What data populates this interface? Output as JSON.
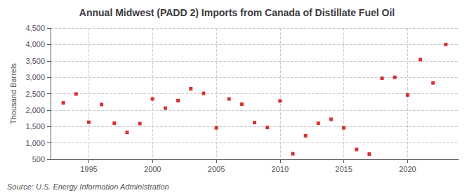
{
  "chart_data": {
    "type": "scatter",
    "title": "Annual Midwest (PADD 2) Imports from Canada of Distillate Fuel Oil",
    "ylabel": "Thousand Barrels",
    "annotations": [
      "Source: U.S. Energy Information Administration"
    ],
    "x": [
      1993,
      1994,
      1995,
      1996,
      1997,
      1998,
      1999,
      2000,
      2001,
      2002,
      2003,
      2004,
      2005,
      2006,
      2007,
      2008,
      2009,
      2010,
      2011,
      2012,
      2013,
      2014,
      2015,
      2016,
      2017,
      2018,
      2019,
      2020,
      2021,
      2022,
      2023
    ],
    "values": [
      2220,
      2490,
      1630,
      2170,
      1600,
      1320,
      1590,
      2340,
      2060,
      2290,
      2650,
      2510,
      1460,
      2340,
      2180,
      1620,
      1470,
      2280,
      670,
      1220,
      1600,
      1720,
      1460,
      800,
      660,
      2970,
      3000,
      2460,
      3540,
      2830,
      4000
    ],
    "color": "#cc0000",
    "marker": "square",
    "xlim": [
      1992,
      2024
    ],
    "xticks": [
      1995,
      2000,
      2005,
      2010,
      2015,
      2020
    ],
    "ylim": [
      500,
      4500
    ],
    "yticks": [
      500,
      {
        "value": 1000,
        "label": "1,000"
      },
      {
        "value": 1500,
        "label": "1,500"
      },
      {
        "value": 2000,
        "label": "2,000"
      },
      {
        "value": 2500,
        "label": "2,500"
      },
      {
        "value": 3000,
        "label": "3,000"
      },
      {
        "value": 3500,
        "label": "3,500"
      },
      {
        "value": 4000,
        "label": "4,000"
      },
      {
        "value": 4500,
        "label": "4,500"
      }
    ],
    "grid": true
  }
}
